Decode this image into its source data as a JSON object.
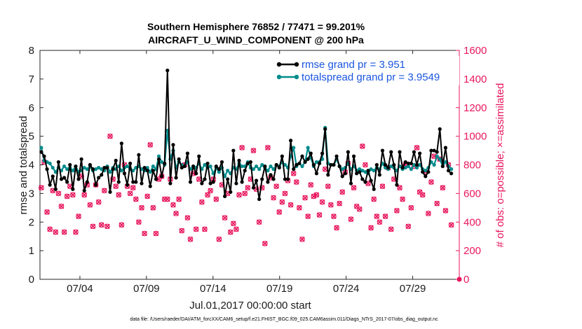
{
  "chart_data": {
    "type": "line",
    "title_line1": "Southern Hemisphere 76852 / 77471 = 99.201%",
    "title_line2": "AIRCRAFT_U_WIND_COMPONENT @ 200 hPa",
    "ylabel_left": "rmse and totalspread",
    "ylabel_right": "# of obs: o=possible; ×=assimilated",
    "xlabel": "Jul.01,2017 00:00:00 start",
    "footer": "data file: /Users/raeder/DAI/ATM_forcXX/CAM6_setup/f.e21.FHIST_BGC.f09_025.CAM6assim.011/Diags_NTrS_2017-07/obs_diag_output.nc",
    "ylim_left": [
      0,
      8
    ],
    "ylim_right": [
      0,
      1600
    ],
    "xlim": [
      1,
      32.5
    ],
    "yticks_left": [
      "0",
      "1",
      "2",
      "3",
      "4",
      "5",
      "6",
      "7",
      "8"
    ],
    "yticks_right": [
      "0",
      "200",
      "400",
      "600",
      "800",
      "1000",
      "1200",
      "1400",
      "1600"
    ],
    "xtick_positions": [
      4,
      9,
      14,
      19,
      24,
      29
    ],
    "xtick_labels": [
      "07/04",
      "07/09",
      "07/14",
      "07/19",
      "07/24",
      "07/29"
    ],
    "colors": {
      "rmse": "#000000",
      "spread": "#008b8b",
      "obs": "#e8175d",
      "legend_text": "#1a55e0"
    },
    "series": [
      {
        "name": "rmse grand pr = 3.951",
        "key": "rmse",
        "values": [
          4.45,
          4.3,
          3.85,
          3.3,
          3.6,
          3.15,
          4.1,
          3.5,
          3.55,
          3.4,
          4.0,
          3.15,
          3.95,
          3.5,
          4.2,
          3.1,
          3.4,
          4.0,
          3.85,
          3.3,
          3.55,
          3.65,
          3.9,
          3.9,
          3.05,
          3.85,
          4.15,
          3.4,
          4.75,
          3.7,
          3.3,
          4.05,
          3.4,
          3.4,
          4.35,
          3.35,
          3.9,
          3.8,
          3.25,
          3.8,
          3.5,
          4.2,
          3.6,
          4.05,
          7.3,
          3.35,
          4.7,
          3.55,
          4.2,
          3.9,
          3.95,
          4.4,
          3.4,
          3.95,
          3.7,
          4.3,
          3.35,
          3.5,
          4.05,
          3.35,
          3.4,
          3.95,
          3.85,
          4.1,
          2.9,
          3.5,
          3.05,
          4.5,
          3.35,
          4.15,
          3.4,
          3.8,
          4.05,
          4.1,
          3.2,
          3.45,
          2.8,
          3.5,
          3.95,
          3.4,
          3.65,
          3.5,
          4.0,
          3.9,
          4.3,
          3.5,
          3.5,
          4.85,
          3.85,
          4.0,
          4.05,
          4.3,
          4.1,
          4.2,
          4.4,
          4.0,
          3.7,
          4.05,
          4.4,
          5.25,
          3.65,
          4.0,
          4.0,
          4.3,
          3.95,
          3.6,
          3.7,
          4.45,
          3.35,
          4.3,
          3.7,
          3.75,
          3.5,
          3.4,
          3.8,
          3.45,
          3.15,
          4.0,
          3.65,
          4.5,
          4.0,
          3.9,
          4.45,
          4.0,
          3.3,
          4.45,
          3.9,
          4.1,
          4.05,
          4.05,
          4.45,
          4.0,
          4.4,
          3.75,
          3.6,
          3.75,
          4.5,
          4.5,
          4.45,
          5.25,
          3.95,
          4.6,
          3.8,
          3.7
        ]
      },
      {
        "name": "totalspread grand pr = 3.9549",
        "key": "spread",
        "values": [
          4.6,
          4.15,
          4.1,
          4.05,
          3.9,
          3.75,
          3.9,
          3.8,
          3.95,
          3.85,
          3.9,
          3.8,
          3.95,
          3.75,
          3.8,
          3.9,
          3.85,
          3.95,
          3.8,
          3.85,
          3.9,
          3.85,
          3.8,
          3.95,
          3.75,
          3.9,
          3.85,
          3.95,
          3.8,
          3.9,
          3.95,
          3.85,
          3.8,
          3.9,
          3.95,
          3.85,
          3.8,
          3.9,
          3.75,
          3.95,
          3.85,
          4.3,
          4.1,
          4.0,
          5.2,
          4.2,
          4.5,
          3.9,
          4.1,
          4.0,
          3.95,
          4.1,
          3.85,
          3.95,
          3.9,
          4.05,
          3.85,
          4.0,
          3.9,
          3.95,
          3.7,
          3.9,
          3.75,
          3.9,
          3.6,
          3.8,
          3.7,
          3.9,
          3.85,
          4.05,
          3.95,
          3.95,
          4.1,
          3.9,
          3.85,
          3.95,
          3.85,
          4.0,
          3.9,
          3.8,
          3.95,
          3.85,
          4.0,
          3.95,
          4.1,
          4.0,
          3.9,
          4.3,
          4.6,
          3.95,
          4.05,
          3.95,
          4.1,
          4.6,
          4.25,
          3.95,
          4.1,
          4.1,
          4.2,
          5.3,
          4.05,
          4.0,
          4.0,
          4.2,
          3.95,
          3.85,
          3.9,
          4.05,
          3.85,
          3.95,
          3.8,
          3.85,
          3.8,
          3.75,
          3.7,
          3.85,
          3.8,
          3.9,
          3.85,
          4.05,
          3.9,
          3.85,
          3.95,
          3.9,
          3.8,
          3.95,
          3.85,
          3.9,
          3.95,
          3.85,
          4.0,
          3.9,
          4.0,
          3.85,
          3.8,
          3.9,
          4.1,
          4.0,
          4.3,
          4.2,
          3.95,
          4.1,
          3.95,
          3.85
        ]
      }
    ],
    "obs_counts": [
      640,
      820,
      470,
      350,
      620,
      330,
      600,
      510,
      330,
      580,
      650,
      590,
      330,
      440,
      720,
      590,
      660,
      520,
      370,
      660,
      540,
      380,
      620,
      370,
      1000,
      700,
      650,
      590,
      380,
      800,
      650,
      600,
      640,
      560,
      400,
      500,
      320,
      580,
      940,
      500,
      320,
      700,
      720,
      560,
      560,
      700,
      520,
      460,
      560,
      340,
      800,
      430,
      280,
      740,
      350,
      700,
      540,
      350,
      590,
      620,
      700,
      560,
      280,
      660,
      430,
      600,
      330,
      390,
      350,
      590,
      920,
      600,
      640,
      700,
      900,
      630,
      400,
      640,
      250,
      920,
      710,
      570,
      650,
      470,
      540,
      600,
      690,
      520,
      740,
      680,
      500,
      280,
      570,
      440,
      660,
      580,
      590,
      450,
      540,
      770,
      650,
      520,
      440,
      360,
      530,
      610,
      750,
      810,
      420,
      640,
      510,
      490,
      930,
      800,
      670,
      360,
      560,
      440,
      400,
      650,
      440,
      780,
      350,
      700,
      480,
      640,
      560,
      800,
      370,
      500,
      790,
      920,
      610,
      590,
      750,
      460,
      680,
      860,
      530,
      840,
      640,
      480,
      800,
      380
    ],
    "legend": {
      "placement": "top-right"
    }
  }
}
